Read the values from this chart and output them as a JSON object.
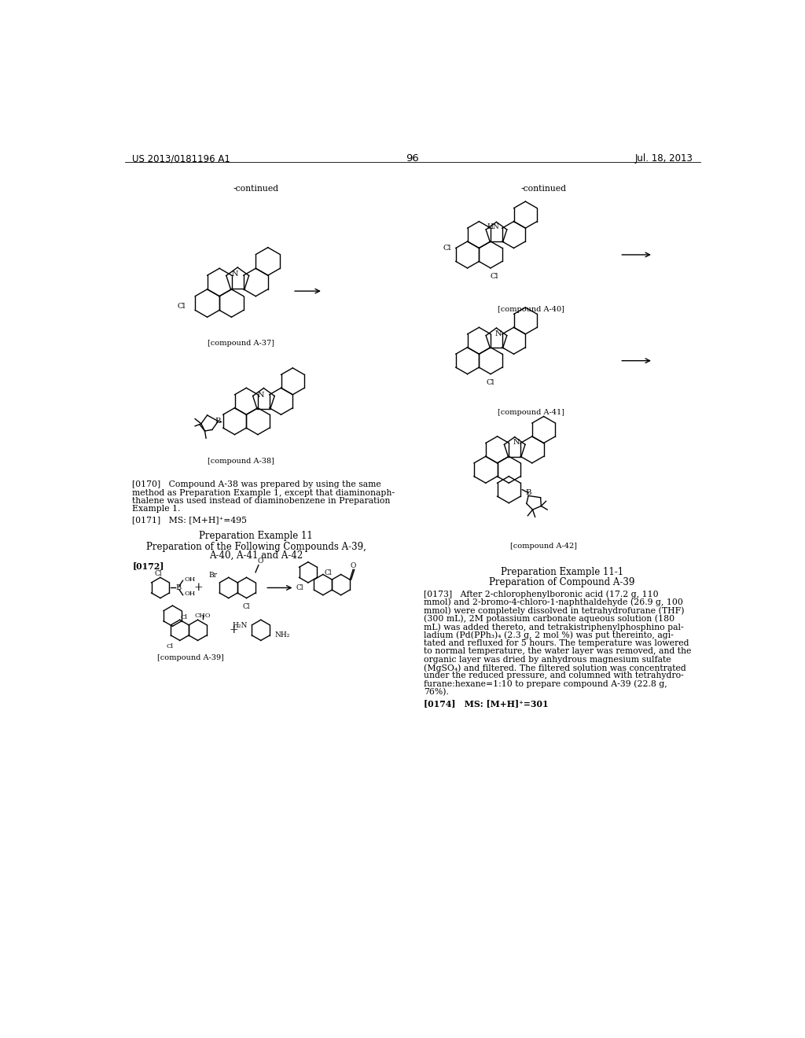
{
  "bg_color": "#ffffff",
  "page_header_left": "US 2013/0181196 A1",
  "page_header_right": "Jul. 18, 2013",
  "page_number": "96",
  "left_continued": "-continued",
  "right_continued": "-continued",
  "label_A37": "[compound A-37]",
  "label_A38": "[compound A-38]",
  "label_A39": "[compound A-39]",
  "label_A40": "[compound A-40]",
  "label_A41": "[compound A-41]",
  "label_A42": "[compound A-42]",
  "p0170_lines": [
    "[0170]   Compound A-38 was prepared by using the same",
    "method as Preparation Example 1, except that diaminonaph-",
    "thalene was used instead of diaminobenzene in Preparation",
    "Example 1."
  ],
  "p0171": "[0171]   MS: [M+H]⁺=495",
  "sec11_title": "Preparation Example 11",
  "sec11_sub": "Preparation of the Following Compounds A-39,",
  "sec11_sub2": "A-40, A-41 and A-42",
  "p0172": "[0172]",
  "prep111_title": "Preparation Example 11-1",
  "prep111_sub": "Preparation of Compound A-39",
  "p0173_lines": [
    "[0173]   After 2-chlorophenylboronic acid (17.2 g, 110",
    "mmol) and 2-bromo-4-chloro-1-naphthaldehyde (26.9 g, 100",
    "mmol) were completely dissolved in tetrahydrofurane (THF)",
    "(300 mL), 2M potassium carbonate aqueous solution (180",
    "mL) was added thereto, and tetrakistriphenylphosphino pal-",
    "ladium (Pd(PPh₃)₄ (2.3 g, 2 mol %) was put thereinto, agi-",
    "tated and refluxed for 5 hours. The temperature was lowered",
    "to normal temperature, the water layer was removed, and the",
    "organic layer was dried by anhydrous magnesium sulfate",
    "(MgSO₄) and filtered. The filtered solution was concentrated",
    "under the reduced pressure, and columned with tetrahydro-",
    "furane:hexane=1:10 to prepare compound A-39 (22.8 g,",
    "76%)."
  ],
  "p0174": "[0174]   MS: [M+H]⁺=301",
  "fsize_hdr": 8.5,
  "fsize_body": 7.8,
  "fsize_label": 7.0,
  "fsize_sec": 8.5,
  "lw": 1.0
}
